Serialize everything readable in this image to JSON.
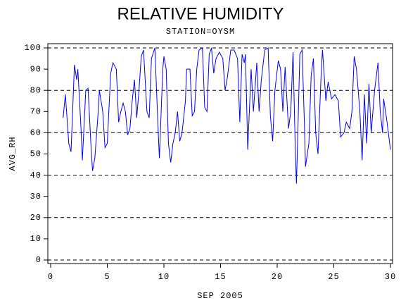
{
  "chart_data": {
    "type": "line",
    "title": "RELATIVE HUMIDITY",
    "subtitle": "STATION=OYSM",
    "x_label": "SEP 2005",
    "y_label": "AVG_RH",
    "xlim": [
      0,
      30
    ],
    "xticks": [
      0,
      5,
      10,
      15,
      20,
      25,
      30
    ],
    "ylim": [
      0,
      100
    ],
    "yticks": [
      0,
      10,
      20,
      30,
      40,
      50,
      60,
      70,
      80,
      90,
      100
    ],
    "grid_lines": [
      0,
      20,
      40,
      60,
      80,
      100
    ],
    "series": [
      {
        "name": "AVG_RH",
        "color": "#0000ff",
        "x": [
          1.1,
          1.3,
          1.6,
          1.8,
          2.1,
          2.3,
          2.4,
          2.7,
          2.8,
          3.1,
          3.3,
          3.6,
          3.7,
          3.9,
          4.2,
          4.3,
          4.6,
          4.8,
          5.0,
          5.3,
          5.5,
          5.8,
          6.0,
          6.2,
          6.4,
          6.6,
          6.8,
          7.0,
          7.2,
          7.4,
          7.6,
          7.8,
          8.0,
          8.2,
          8.5,
          8.7,
          8.9,
          9.2,
          9.5,
          9.6,
          9.9,
          10.0,
          10.2,
          10.4,
          10.6,
          10.8,
          11.0,
          11.2,
          11.4,
          11.6,
          11.9,
          12.0,
          12.3,
          12.5,
          12.7,
          12.9,
          13.1,
          13.4,
          13.6,
          13.8,
          14.0,
          14.2,
          14.4,
          14.6,
          14.9,
          15.2,
          15.4,
          15.6,
          15.9,
          16.2,
          16.5,
          16.7,
          16.9,
          17.1,
          17.2,
          17.4,
          17.7,
          17.9,
          18.2,
          18.4,
          18.6,
          18.9,
          19.2,
          19.4,
          19.6,
          19.8,
          20.1,
          20.3,
          20.5,
          20.7,
          21.0,
          21.2,
          21.4,
          21.6,
          21.7,
          21.8,
          22.0,
          22.2,
          22.4,
          22.5,
          22.8,
          23.0,
          23.2,
          23.4,
          23.6,
          23.9,
          24.0,
          24.3,
          24.5,
          24.8,
          25.1,
          25.4,
          25.6,
          25.9,
          26.1,
          26.4,
          26.6,
          26.8,
          27.0,
          27.3,
          27.5,
          27.7,
          27.9,
          28.1,
          28.3,
          28.6,
          28.9,
          29.1,
          29.3,
          29.4,
          29.7,
          30.0
        ],
        "values": [
          67,
          78,
          55,
          51,
          92,
          85,
          90,
          60,
          47,
          80,
          81,
          50,
          42,
          48,
          70,
          80,
          70,
          53,
          55,
          88,
          93,
          90,
          65,
          70,
          74,
          70,
          59,
          62,
          75,
          85,
          67,
          80,
          96,
          99,
          70,
          67,
          95,
          100,
          60,
          48,
          90,
          96,
          90,
          55,
          46,
          55,
          60,
          70,
          56,
          60,
          75,
          90,
          90,
          68,
          70,
          90,
          99,
          100,
          72,
          70,
          97,
          100,
          88,
          95,
          98,
          95,
          80,
          86,
          99,
          99,
          95,
          65,
          97,
          93,
          97,
          52,
          90,
          70,
          93,
          70,
          85,
          99,
          100,
          68,
          56,
          80,
          94,
          90,
          70,
          91,
          62,
          70,
          98,
          52,
          36,
          55,
          97,
          99,
          65,
          44,
          55,
          87,
          95,
          60,
          50,
          90,
          99,
          75,
          84,
          76,
          78,
          75,
          58,
          60,
          65,
          62,
          70,
          96,
          90,
          70,
          47,
          78,
          55,
          83,
          60,
          80,
          93,
          70,
          60,
          76,
          65,
          52
        ]
      }
    ]
  }
}
